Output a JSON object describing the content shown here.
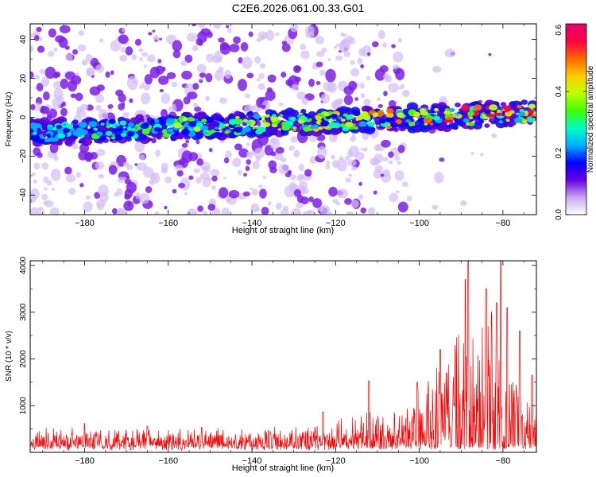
{
  "figure": {
    "title": "C2E6.2026.061.00.33.G01"
  },
  "chart_data": [
    {
      "type": "heatmap",
      "title": "C2E6.2026.061.00.33.G01",
      "xlabel": "Height of straight line (km)",
      "ylabel": "Frequency (Hz)",
      "xlim": [
        -193,
        -72
      ],
      "ylim": [
        -50,
        48
      ],
      "xticks": [
        -180,
        -160,
        -140,
        -120,
        -100,
        -80
      ],
      "yticks": [
        -40,
        -20,
        0,
        20,
        40
      ],
      "colorbar": {
        "label": "Normalized spectral amplitude",
        "range": [
          0.0,
          0.62
        ],
        "ticks": [
          "0.0",
          "0.2",
          "0.4",
          "0.6"
        ],
        "tick_values": [
          0.0,
          0.2,
          0.4,
          0.6
        ],
        "colors": [
          "#ffffff",
          "#c8a6f2",
          "#6600e0",
          "#0000ff",
          "#00b0ff",
          "#00ffc0",
          "#40ff00",
          "#c0ff00",
          "#ffcc00",
          "#ff6600",
          "#ff0044",
          "#e60073"
        ]
      },
      "signal_band": {
        "center_freq_at_xmin": -8,
        "center_freq_at_xmax": 2,
        "half_width_hz": 6
      },
      "noise_cutoff_x": -104
    },
    {
      "type": "line",
      "xlabel": "Height of straight line (km)",
      "ylabel": "SNR (10 * v/v)",
      "xlim": [
        -193,
        -72
      ],
      "ylim": [
        0,
        4100
      ],
      "xticks": [
        -180,
        -160,
        -140,
        -120,
        -100,
        -80
      ],
      "yticks": [
        1000,
        2000,
        3000,
        4000
      ],
      "color": "#ff0000",
      "series": [
        {
          "name": "SNR",
          "envelope_x": [
            -193,
            -180,
            -160,
            -140,
            -130,
            -120,
            -110,
            -105,
            -100,
            -95,
            -90,
            -88,
            -85,
            -82,
            -80,
            -78,
            -75,
            -72
          ],
          "envelope_y": [
            300,
            310,
            280,
            280,
            320,
            420,
            520,
            620,
            1000,
            1400,
            1900,
            2300,
            2100,
            2400,
            2000,
            1400,
            1000,
            800
          ],
          "peak_x": [
            -180,
            -165,
            -152,
            -123,
            -112,
            -100.5,
            -95,
            -89,
            -88.3,
            -84,
            -81.5,
            -80.5,
            -79,
            -76,
            -73
          ],
          "peak_y": [
            620,
            560,
            540,
            860,
            1530,
            1500,
            2200,
            3700,
            4100,
            3500,
            3200,
            4100,
            3100,
            2600,
            1650
          ]
        }
      ]
    }
  ]
}
